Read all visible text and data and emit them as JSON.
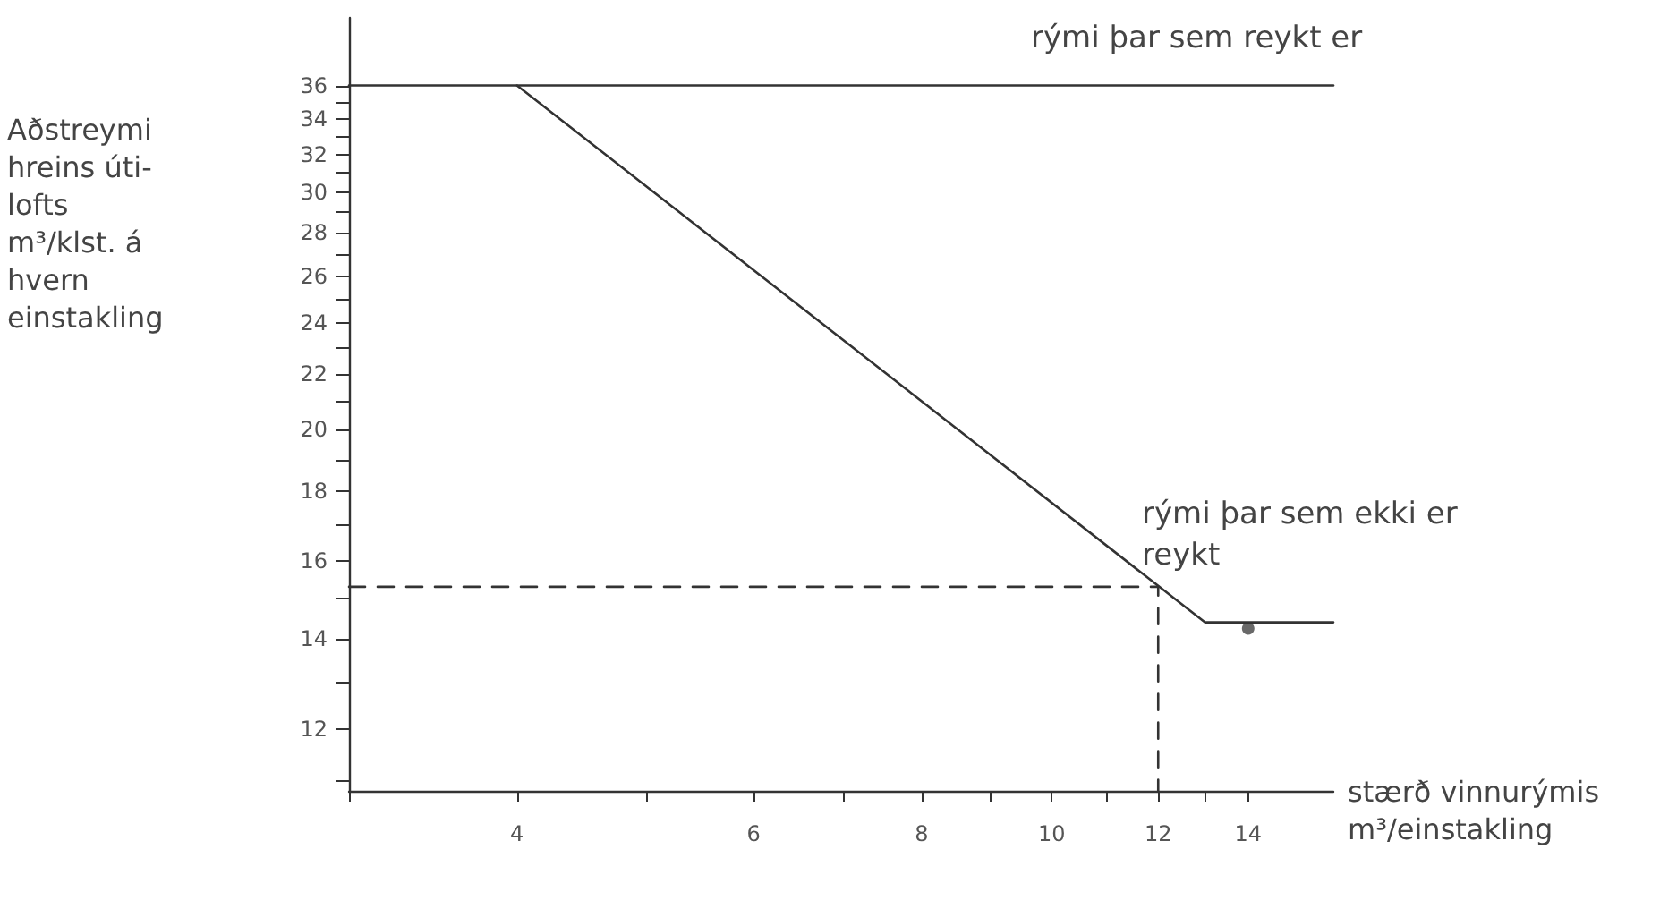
{
  "chart_data": {
    "type": "line",
    "xlabel": "stærð vinnurýmis\nm³/einstakling",
    "ylabel": "Aðstreymi\nhreins úti-\nlofts\nm³/klst. á\nhvern\neinstakling",
    "log": "xy",
    "xlim": [
      3,
      16.2
    ],
    "ylim": [
      10.8,
      40.4
    ],
    "xticks": [
      {
        "value": 3,
        "label": null
      },
      4,
      {
        "value": 5,
        "label": null
      },
      6,
      {
        "value": 7,
        "label": null
      },
      8,
      {
        "value": 9,
        "label": null
      },
      10,
      {
        "value": 11,
        "label": null
      },
      12,
      {
        "value": 13,
        "label": null
      },
      14
    ],
    "yticks": [
      {
        "value": 11,
        "label": null
      },
      12,
      {
        "value": 13,
        "label": null
      },
      14,
      {
        "value": 15,
        "label": null
      },
      16,
      {
        "value": 17,
        "label": null
      },
      18,
      {
        "value": 19,
        "label": null
      },
      20,
      {
        "value": 21,
        "label": null
      },
      22,
      {
        "value": 23,
        "label": null
      },
      24,
      {
        "value": 25,
        "label": null
      },
      26,
      {
        "value": 27,
        "label": null
      },
      28,
      {
        "value": 29,
        "label": null
      },
      30,
      {
        "value": 31,
        "label": null
      },
      32,
      {
        "value": 33,
        "label": null
      },
      34,
      {
        "value": 35,
        "label": null
      },
      36
    ],
    "grid": false,
    "marker": "none",
    "line_style": "solid",
    "series": [
      {
        "color": "#333333",
        "x": [
          3,
          16.2
        ],
        "values": [
          36,
          36
        ]
      },
      {
        "color": "#333333",
        "x": [
          4,
          13,
          16.2
        ],
        "values": [
          36,
          14.4,
          14.4
        ]
      },
      {
        "color": "#333333",
        "line_style": "dashed",
        "x": [
          3,
          12,
          12
        ],
        "values": [
          15.3,
          15.3,
          10.8
        ]
      },
      {
        "type": "scatter",
        "color": "#444444",
        "marker": "circle",
        "x": [
          14
        ],
        "values": [
          14.25
        ]
      }
    ],
    "annotations": [
      "rými þar sem reykt er",
      "rými þar sem ekki er\nreykt"
    ]
  }
}
